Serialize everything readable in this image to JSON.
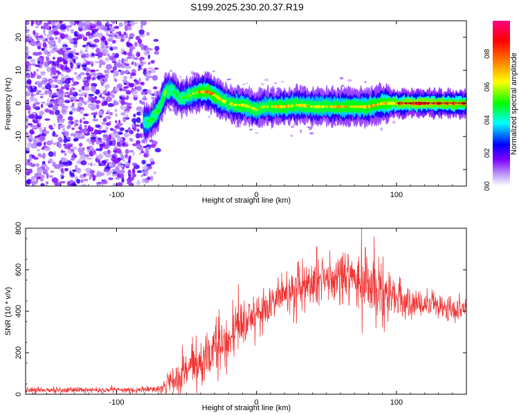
{
  "chart_data": [
    {
      "type": "heatmap",
      "title": "S199.2025.230.20.37.R19",
      "xlabel": "Height of straight line (km)",
      "ylabel": "Frequency (Hz)",
      "xlim": [
        -165,
        150
      ],
      "ylim": [
        -25,
        25
      ],
      "xticks": [
        -100,
        0,
        100
      ],
      "yticks": [
        20,
        10,
        0,
        -10,
        -20
      ],
      "colorbar": {
        "label": "Normalized spectral amplitude",
        "range": [
          0,
          1
        ],
        "ticks": [
          "0.0",
          "0.2",
          "0.4",
          "0.6",
          "0.8"
        ],
        "colors": [
          "#ffffff",
          "#7f00ff",
          "#0000ff",
          "#00ffff",
          "#00ff00",
          "#ffff00",
          "#ff8000",
          "#ff0000",
          "#ff0080"
        ]
      },
      "noise_region_x": [
        -165,
        -70
      ],
      "ridge": {
        "x": [
          -80,
          -75,
          -70,
          -65,
          -60,
          -55,
          -50,
          -45,
          -40,
          -35,
          -30,
          -25,
          -20,
          -15,
          -10,
          -5,
          0,
          5,
          10,
          20,
          30,
          40,
          50,
          60,
          70,
          80,
          90,
          100,
          110,
          120,
          130,
          140,
          150
        ],
        "freq": [
          -6,
          -5,
          -2,
          3.5,
          4,
          1.5,
          2,
          3,
          3.5,
          3.5,
          2.5,
          1,
          0,
          -0.5,
          -0.5,
          -1,
          -2,
          -1,
          -1,
          -1,
          -0.5,
          -1,
          -1,
          -1,
          -1,
          -1,
          0,
          0,
          0,
          0,
          0,
          0,
          0
        ],
        "amp": [
          0.4,
          0.5,
          0.55,
          0.55,
          0.5,
          0.5,
          0.5,
          0.6,
          0.75,
          0.8,
          0.75,
          0.65,
          0.6,
          0.65,
          0.7,
          0.65,
          0.6,
          0.6,
          0.65,
          0.7,
          0.65,
          0.65,
          0.65,
          0.7,
          0.7,
          0.7,
          0.75,
          0.85,
          0.95,
          0.95,
          0.9,
          0.85,
          0.8
        ]
      }
    },
    {
      "type": "line",
      "title": "",
      "xlabel": "Height of straight line (km)",
      "ylabel": "SNR (10 * v/v)",
      "xlim": [
        -165,
        150
      ],
      "ylim": [
        0,
        800
      ],
      "xticks": [
        -100,
        0,
        100
      ],
      "yticks": [
        0,
        200,
        400,
        600,
        800
      ],
      "color": "#ee3333",
      "envelope": {
        "x": [
          -165,
          -100,
          -70,
          -60,
          -50,
          -40,
          -30,
          -20,
          -10,
          0,
          10,
          20,
          30,
          40,
          50,
          60,
          70,
          80,
          90,
          100,
          110,
          120,
          130,
          140,
          150
        ],
        "mean": [
          20,
          20,
          25,
          55,
          110,
          150,
          210,
          270,
          330,
          390,
          440,
          480,
          510,
          535,
          550,
          555,
          545,
          520,
          490,
          460,
          440,
          430,
          420,
          410,
          400
        ],
        "noise": [
          8,
          8,
          10,
          40,
          60,
          70,
          75,
          70,
          65,
          60,
          55,
          60,
          65,
          70,
          75,
          70,
          75,
          75,
          70,
          55,
          40,
          35,
          35,
          35,
          30
        ]
      },
      "peaks": [
        {
          "x": 75,
          "y": 800
        },
        {
          "x": 84,
          "y": 760
        },
        {
          "x": 43,
          "y": 710
        },
        {
          "x": -13,
          "y": 530
        },
        {
          "x": -17,
          "y": 455
        },
        {
          "x": 60,
          "y": 650
        }
      ]
    }
  ]
}
